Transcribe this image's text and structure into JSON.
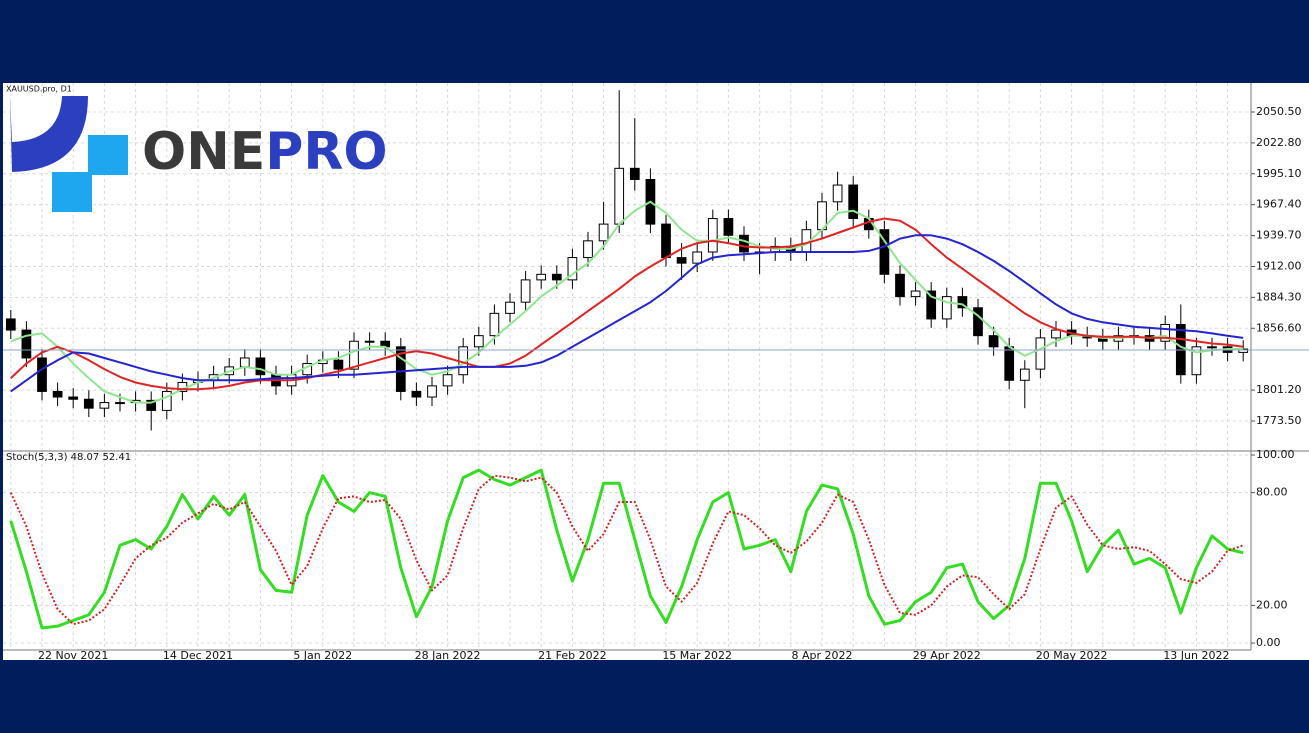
{
  "logo": {
    "part1": "ONE",
    "part2": "PRO"
  },
  "chart_data": [
    {
      "type": "candlestick",
      "title": "XAUUSD.pro, D1",
      "categories": [
        null,
        null,
        null,
        null,
        "22 Nov 2021",
        null,
        null,
        null,
        null,
        null,
        null,
        null,
        "14 Dec 2021",
        null,
        null,
        null,
        null,
        null,
        null,
        null,
        "5 Jan 2022",
        null,
        null,
        null,
        null,
        null,
        null,
        null,
        "28 Jan 2022",
        null,
        null,
        null,
        null,
        null,
        null,
        null,
        "21 Feb 2022",
        null,
        null,
        null,
        null,
        null,
        null,
        null,
        "15 Mar 2022",
        null,
        null,
        null,
        null,
        null,
        null,
        null,
        "8 Apr 2022",
        null,
        null,
        null,
        null,
        null,
        null,
        null,
        "29 Apr 2022",
        null,
        null,
        null,
        null,
        null,
        null,
        null,
        "20 May 2022",
        null,
        null,
        null,
        null,
        null,
        null,
        null,
        "13 Jun 2022",
        null,
        null,
        null
      ],
      "open": [
        1865,
        1855,
        1830,
        1800,
        1795,
        1793,
        1785,
        1790,
        1790,
        1792,
        1783,
        1800,
        1808,
        1810,
        1815,
        1822,
        1830,
        1815,
        1805,
        1815,
        1825,
        1828,
        1820,
        1845,
        1845,
        1840,
        1800,
        1795,
        1805,
        1815,
        1840,
        1850,
        1870,
        1880,
        1900,
        1905,
        1900,
        1920,
        1935,
        1950,
        2000,
        1990,
        1950,
        1920,
        1915,
        1925,
        1955,
        1940,
        1925,
        1925,
        1930,
        1925,
        1945,
        1970,
        1985,
        1955,
        1945,
        1905,
        1885,
        1890,
        1865,
        1885,
        1875,
        1850,
        1840,
        1810,
        1820,
        1848,
        1855,
        1850,
        1848,
        1845,
        1850,
        1850,
        1845,
        1860,
        1815,
        1840,
        1840,
        1835
      ],
      "high": [
        1873,
        1863,
        1838,
        1808,
        1803,
        1801,
        1798,
        1798,
        1800,
        1800,
        1808,
        1816,
        1818,
        1823,
        1830,
        1838,
        1838,
        1823,
        1823,
        1833,
        1836,
        1836,
        1853,
        1853,
        1853,
        1848,
        1808,
        1813,
        1823,
        1848,
        1858,
        1878,
        1888,
        1908,
        1913,
        1913,
        1928,
        1943,
        1970,
        2070,
        2045,
        2000,
        1958,
        1933,
        1933,
        1963,
        1963,
        1948,
        1933,
        1938,
        1938,
        1953,
        1978,
        1997,
        1993,
        1963,
        1953,
        1913,
        1898,
        1898,
        1893,
        1893,
        1883,
        1858,
        1848,
        1828,
        1856,
        1863,
        1863,
        1858,
        1856,
        1858,
        1858,
        1858,
        1868,
        1878,
        1848,
        1848,
        1848,
        1846
      ],
      "low": [
        1847,
        1822,
        1792,
        1787,
        1785,
        1777,
        1777,
        1782,
        1782,
        1765,
        1775,
        1792,
        1800,
        1802,
        1807,
        1814,
        1807,
        1797,
        1797,
        1807,
        1817,
        1812,
        1812,
        1837,
        1832,
        1792,
        1787,
        1787,
        1797,
        1807,
        1832,
        1842,
        1862,
        1872,
        1892,
        1892,
        1892,
        1912,
        1927,
        1942,
        1980,
        1942,
        1912,
        1900,
        1907,
        1917,
        1932,
        1917,
        1905,
        1917,
        1917,
        1917,
        1937,
        1962,
        1947,
        1937,
        1897,
        1877,
        1877,
        1857,
        1857,
        1867,
        1842,
        1832,
        1802,
        1785,
        1812,
        1840,
        1842,
        1840,
        1837,
        1837,
        1842,
        1837,
        1837,
        1807,
        1807,
        1832,
        1827,
        1827
      ],
      "close": [
        1855,
        1830,
        1800,
        1795,
        1793,
        1785,
        1790,
        1790,
        1792,
        1783,
        1800,
        1808,
        1810,
        1815,
        1822,
        1830,
        1815,
        1805,
        1815,
        1825,
        1828,
        1820,
        1845,
        1845,
        1840,
        1800,
        1795,
        1805,
        1815,
        1840,
        1850,
        1870,
        1880,
        1900,
        1905,
        1900,
        1920,
        1935,
        1950,
        2000,
        1990,
        1950,
        1920,
        1915,
        1925,
        1955,
        1940,
        1925,
        1925,
        1930,
        1925,
        1945,
        1970,
        1985,
        1955,
        1945,
        1905,
        1885,
        1890,
        1865,
        1885,
        1875,
        1850,
        1840,
        1810,
        1820,
        1848,
        1855,
        1850,
        1848,
        1845,
        1850,
        1850,
        1845,
        1860,
        1815,
        1840,
        1840,
        1835,
        1838
      ],
      "series": [
        {
          "color": "#8fe68f",
          "values": [
            1845,
            1850,
            1852,
            1840,
            1825,
            1812,
            1800,
            1795,
            1790,
            1790,
            1795,
            1802,
            1808,
            1812,
            1818,
            1822,
            1820,
            1815,
            1815,
            1822,
            1828,
            1830,
            1836,
            1840,
            1840,
            1830,
            1820,
            1815,
            1818,
            1825,
            1835,
            1848,
            1860,
            1872,
            1885,
            1895,
            1905,
            1915,
            1930,
            1950,
            1962,
            1970,
            1960,
            1945,
            1935,
            1935,
            1938,
            1935,
            1930,
            1928,
            1928,
            1932,
            1945,
            1960,
            1962,
            1955,
            1935,
            1915,
            1900,
            1885,
            1880,
            1878,
            1868,
            1855,
            1840,
            1832,
            1838,
            1845,
            1850,
            1850,
            1848,
            1848,
            1849,
            1848,
            1850,
            1840,
            1835,
            1837,
            1838,
            1838
          ]
        },
        {
          "color": "#e02424",
          "values": [
            1812,
            1825,
            1835,
            1840,
            1835,
            1828,
            1820,
            1813,
            1808,
            1805,
            1803,
            1802,
            1802,
            1803,
            1805,
            1808,
            1810,
            1810,
            1810,
            1812,
            1815,
            1818,
            1822,
            1826,
            1830,
            1834,
            1836,
            1834,
            1830,
            1826,
            1822,
            1822,
            1825,
            1832,
            1842,
            1852,
            1862,
            1872,
            1882,
            1892,
            1903,
            1912,
            1920,
            1928,
            1933,
            1935,
            1933,
            1930,
            1929,
            1929,
            1930,
            1933,
            1937,
            1942,
            1947,
            1952,
            1955,
            1953,
            1945,
            1932,
            1920,
            1910,
            1900,
            1890,
            1880,
            1870,
            1862,
            1856,
            1852,
            1850,
            1849,
            1849,
            1849,
            1848,
            1848,
            1847,
            1845,
            1843,
            1842,
            1840
          ]
        },
        {
          "color": "#2424d0",
          "values": [
            1800,
            1810,
            1820,
            1828,
            1835,
            1834,
            1830,
            1826,
            1822,
            1818,
            1815,
            1812,
            1810,
            1810,
            1810,
            1810,
            1811,
            1812,
            1812,
            1813,
            1814,
            1815,
            1815,
            1816,
            1817,
            1818,
            1819,
            1820,
            1821,
            1822,
            1822,
            1822,
            1822,
            1823,
            1826,
            1832,
            1840,
            1848,
            1856,
            1864,
            1872,
            1880,
            1890,
            1902,
            1914,
            1920,
            1922,
            1923,
            1924,
            1925,
            1925,
            1925,
            1925,
            1925,
            1925,
            1926,
            1930,
            1937,
            1940,
            1940,
            1937,
            1932,
            1925,
            1917,
            1908,
            1898,
            1888,
            1878,
            1870,
            1865,
            1862,
            1860,
            1858,
            1857,
            1856,
            1855,
            1854,
            1852,
            1850,
            1848
          ]
        }
      ],
      "price_line": 1837.2,
      "price_line_color": "#8ea4c8",
      "ylim": [
        1747.5,
        2076.5
      ],
      "yticks": [
        {
          "value": 2050.5,
          "label": "2050.50"
        },
        {
          "value": 2022.8,
          "label": "2022.80"
        },
        {
          "value": 1995.1,
          "label": "1995.10"
        },
        {
          "value": 1967.4,
          "label": "1967.40"
        },
        {
          "value": 1939.7,
          "label": "1939.70"
        },
        {
          "value": 1912,
          "label": "1912.00"
        },
        {
          "value": 1884.3,
          "label": "1884.30"
        },
        {
          "value": 1856.6,
          "label": "1856.60"
        },
        {
          "value": 1801.2,
          "label": "1801.20"
        },
        {
          "value": 1773.5,
          "label": "1773.50"
        }
      ],
      "grid": true
    },
    {
      "type": "line",
      "title": "Stoch(5,3,3) 48.07 52.41",
      "series": [
        {
          "color": "#33dd22",
          "line_style": "solid",
          "values": [
            65,
            38,
            8,
            9,
            12,
            15,
            27,
            52,
            55,
            50,
            62,
            79,
            66,
            78,
            68,
            79,
            39,
            28,
            27,
            68,
            89,
            75,
            70,
            80,
            78,
            40,
            14,
            30,
            65,
            88,
            92,
            87,
            84,
            88,
            92,
            60,
            33,
            55,
            85,
            85,
            55,
            25,
            11,
            30,
            55,
            75,
            80,
            50,
            52,
            55,
            38,
            70,
            84,
            82,
            58,
            25,
            10,
            12,
            22,
            27,
            40,
            42,
            22,
            13,
            20,
            45,
            85,
            85,
            65,
            38,
            52,
            60,
            42,
            45,
            40,
            16,
            40,
            57,
            50,
            48
          ]
        },
        {
          "color": "#d42020",
          "line_style": "dotted",
          "values": [
            80,
            62,
            37,
            18,
            10,
            12,
            18,
            31,
            45,
            52,
            56,
            64,
            69,
            74,
            71,
            75,
            62,
            49,
            31,
            41,
            61,
            77,
            78,
            75,
            76,
            66,
            44,
            28,
            36,
            61,
            82,
            89,
            88,
            86,
            88,
            80,
            62,
            49,
            58,
            75,
            75,
            55,
            30,
            22,
            32,
            53,
            70,
            68,
            61,
            52,
            48,
            54,
            64,
            79,
            75,
            55,
            31,
            16,
            15,
            20,
            30,
            36,
            35,
            26,
            18,
            26,
            50,
            72,
            78,
            63,
            52,
            50,
            51,
            49,
            42,
            34,
            32,
            38,
            49,
            52
          ]
        }
      ],
      "ylim": [
        -3.7,
        101.6
      ],
      "yticks": [
        {
          "value": 100,
          "label": "100.00"
        },
        {
          "value": 80,
          "label": "80.00"
        },
        {
          "value": 20,
          "label": "20.00"
        },
        {
          "value": 0,
          "label": "0.00"
        }
      ],
      "grid": true
    }
  ]
}
